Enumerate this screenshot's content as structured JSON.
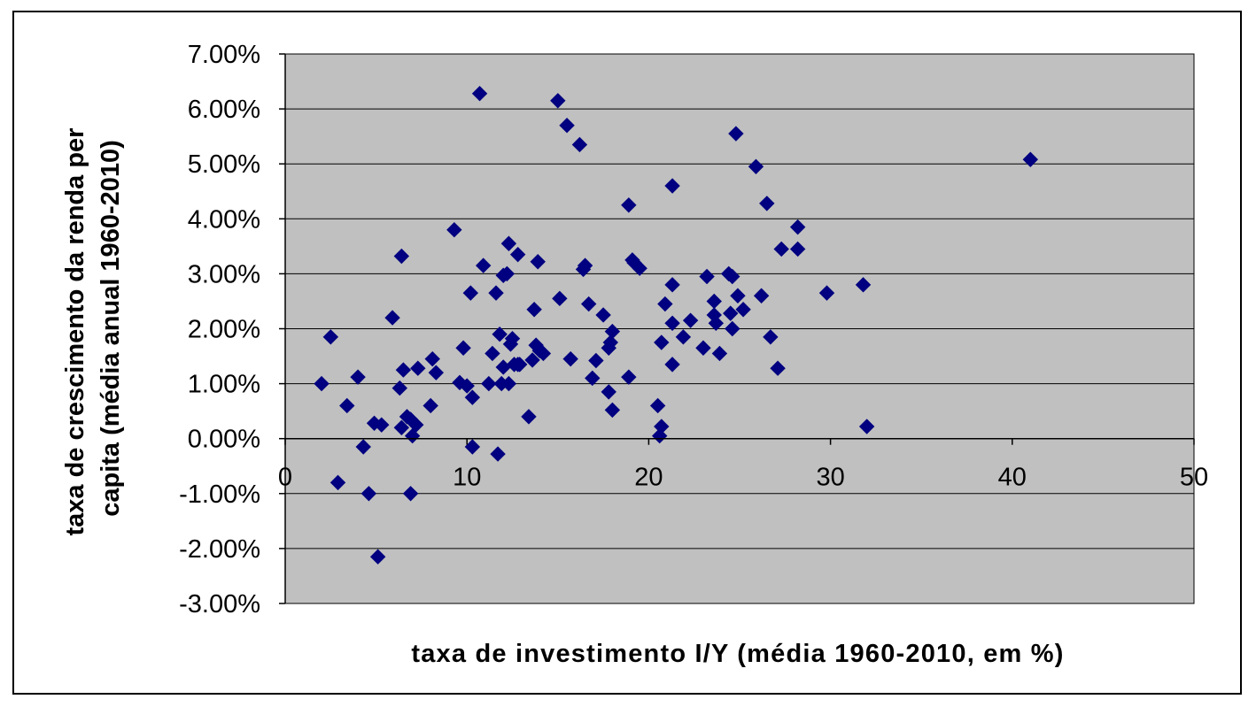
{
  "chart_data": {
    "type": "scatter",
    "title": "",
    "xlabel": "taxa de investimento I/Y (média 1960-2010, em %)",
    "ylabel_line1": "taxa de crescimento da renda per",
    "ylabel_line2": "capita (média anual 1960-2010)",
    "xlim": [
      0,
      50
    ],
    "ylim": [
      -3,
      7
    ],
    "x_ticks": [
      0,
      10,
      20,
      30,
      40,
      50
    ],
    "x_tick_labels": [
      "0",
      "10",
      "20",
      "30",
      "40",
      "50"
    ],
    "y_ticks": [
      7,
      6,
      5,
      4,
      3,
      2,
      1,
      0,
      -1,
      -2,
      -3
    ],
    "y_tick_labels": [
      "7.00%",
      "6.00%",
      "5.00%",
      "4.00%",
      "3.00%",
      "2.00%",
      "1.00%",
      "0.00%",
      "-1.00%",
      "-2.00%",
      "-3.00%"
    ],
    "grid": "horizontal",
    "legend": "none",
    "colors": {
      "plot_background": "#c0c0c0",
      "marker": "#000080",
      "gridline": "#000000",
      "frame": "#000000"
    },
    "series": [
      {
        "marker": "diamond",
        "points": [
          [
            2.0,
            1.0
          ],
          [
            2.5,
            1.85
          ],
          [
            2.9,
            -0.8
          ],
          [
            3.4,
            0.6
          ],
          [
            4.0,
            1.12
          ],
          [
            4.3,
            -0.15
          ],
          [
            4.6,
            -1.0
          ],
          [
            4.9,
            0.28
          ],
          [
            5.1,
            -2.15
          ],
          [
            5.3,
            0.25
          ],
          [
            5.9,
            2.2
          ],
          [
            6.3,
            0.92
          ],
          [
            6.4,
            3.32
          ],
          [
            6.5,
            1.25
          ],
          [
            6.4,
            0.2
          ],
          [
            6.7,
            0.4
          ],
          [
            6.9,
            0.35
          ],
          [
            6.9,
            -1.0
          ],
          [
            7.0,
            0.05
          ],
          [
            7.2,
            0.25
          ],
          [
            7.3,
            1.28
          ],
          [
            8.0,
            0.6
          ],
          [
            8.1,
            1.45
          ],
          [
            8.3,
            1.2
          ],
          [
            9.3,
            3.8
          ],
          [
            9.6,
            1.02
          ],
          [
            9.8,
            1.65
          ],
          [
            10.0,
            0.96
          ],
          [
            10.2,
            2.65
          ],
          [
            10.3,
            0.75
          ],
          [
            10.3,
            -0.15
          ],
          [
            10.7,
            6.28
          ],
          [
            10.9,
            3.15
          ],
          [
            11.2,
            1.0
          ],
          [
            11.4,
            1.55
          ],
          [
            11.6,
            2.65
          ],
          [
            11.7,
            -0.28
          ],
          [
            11.8,
            1.9
          ],
          [
            11.9,
            1.0
          ],
          [
            12.0,
            1.3
          ],
          [
            12.0,
            2.97
          ],
          [
            12.2,
            3.0
          ],
          [
            12.3,
            3.55
          ],
          [
            12.3,
            1.0
          ],
          [
            12.4,
            1.72
          ],
          [
            12.5,
            1.82
          ],
          [
            12.6,
            1.35
          ],
          [
            12.8,
            3.35
          ],
          [
            12.8,
            1.35
          ],
          [
            12.9,
            1.35
          ],
          [
            13.4,
            0.4
          ],
          [
            13.6,
            1.43
          ],
          [
            13.7,
            2.35
          ],
          [
            13.8,
            1.7
          ],
          [
            13.9,
            3.22
          ],
          [
            14.0,
            1.6
          ],
          [
            14.2,
            1.55
          ],
          [
            15.0,
            6.15
          ],
          [
            15.1,
            2.55
          ],
          [
            15.5,
            5.7
          ],
          [
            15.7,
            1.45
          ],
          [
            16.2,
            5.35
          ],
          [
            16.4,
            3.08
          ],
          [
            16.5,
            3.15
          ],
          [
            16.7,
            2.45
          ],
          [
            16.9,
            1.1
          ],
          [
            17.1,
            1.42
          ],
          [
            17.5,
            2.25
          ],
          [
            17.8,
            0.85
          ],
          [
            17.8,
            1.65
          ],
          [
            17.9,
            1.75
          ],
          [
            18.0,
            0.52
          ],
          [
            18.0,
            1.95
          ],
          [
            18.9,
            4.25
          ],
          [
            18.9,
            1.12
          ],
          [
            19.1,
            3.25
          ],
          [
            19.2,
            3.2
          ],
          [
            19.5,
            3.1
          ],
          [
            20.5,
            0.6
          ],
          [
            20.6,
            0.05
          ],
          [
            20.7,
            0.22
          ],
          [
            20.7,
            1.75
          ],
          [
            20.9,
            2.45
          ],
          [
            21.3,
            4.6
          ],
          [
            21.3,
            2.8
          ],
          [
            21.3,
            2.1
          ],
          [
            21.3,
            1.35
          ],
          [
            21.9,
            1.85
          ],
          [
            22.3,
            2.15
          ],
          [
            23.0,
            1.65
          ],
          [
            23.2,
            2.95
          ],
          [
            23.6,
            2.25
          ],
          [
            23.6,
            2.5
          ],
          [
            23.7,
            2.1
          ],
          [
            23.9,
            1.55
          ],
          [
            24.4,
            3.0
          ],
          [
            24.5,
            2.28
          ],
          [
            24.6,
            2.95
          ],
          [
            24.6,
            2.0
          ],
          [
            24.8,
            5.55
          ],
          [
            24.9,
            2.6
          ],
          [
            25.2,
            2.35
          ],
          [
            25.9,
            4.95
          ],
          [
            26.2,
            2.6
          ],
          [
            26.5,
            4.28
          ],
          [
            26.7,
            1.85
          ],
          [
            27.1,
            1.28
          ],
          [
            27.3,
            3.45
          ],
          [
            28.2,
            3.85
          ],
          [
            28.2,
            3.45
          ],
          [
            29.8,
            2.65
          ],
          [
            31.8,
            2.8
          ],
          [
            32.0,
            0.22
          ],
          [
            41.0,
            5.08
          ]
        ]
      }
    ]
  }
}
